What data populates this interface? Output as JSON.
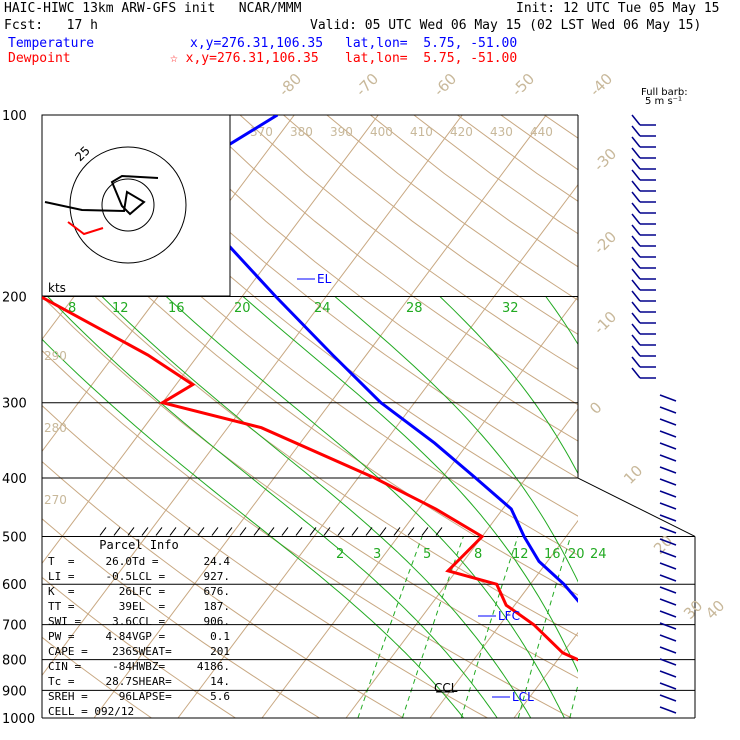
{
  "header": {
    "title": "HAIC-HIWC 13km ARW-GFS init   NCAR/MMM",
    "init": "Init: 12 UTC Tue 05 May 15",
    "fcst": "Fcst:   17 h",
    "valid": "Valid: 05 UTC Wed 06 May 15 (02 LST Wed 06 May 15)",
    "temp_label": "Temperature",
    "dew_label": "Dewpoint",
    "temp_xy": "x,y=276.31,106.35",
    "dew_xy": "☆ x,y=276.31,106.35",
    "temp_latlon": "lat,lon=  5.75, -51.00",
    "dew_latlon": "lat,lon=  5.75, -51.00"
  },
  "colors": {
    "temperature": "#0000ff",
    "dewpoint": "#ff0000",
    "dry_adiabat": "#c8a882",
    "moist_adiabat": "#22aa22",
    "isobar": "#000000",
    "wind_barb": "#00008b",
    "tan_label": "#c8b89a"
  },
  "chart_data": {
    "type": "line",
    "title": "HAIC-HIWC 13km ARW-GFS init",
    "pressure_levels": [
      100,
      200,
      300,
      400,
      500,
      600,
      700,
      800,
      900,
      1000
    ],
    "isotherm_labels": [
      "-80",
      "-70",
      "-60",
      "-50",
      "-40",
      "-30",
      "-20",
      "-10",
      "0",
      "10",
      "20",
      "30",
      "40"
    ],
    "theta_labels": [
      "370",
      "380",
      "390",
      "400",
      "410",
      "420",
      "430",
      "440"
    ],
    "lower_theta_labels": [
      "290",
      "280",
      "270"
    ],
    "mixing_ratio_upper": [
      "8",
      "12",
      "16",
      "20",
      "24",
      "28",
      "32"
    ],
    "mixing_ratio_lower": [
      "2",
      "3",
      "5",
      "8",
      "12",
      "16",
      "20",
      "24"
    ],
    "series": [
      {
        "name": "Temperature",
        "points": [
          [
            100,
            -72
          ],
          [
            120,
            -77
          ],
          [
            150,
            -71
          ],
          [
            200,
            -56
          ],
          [
            250,
            -44
          ],
          [
            300,
            -34
          ],
          [
            350,
            -24
          ],
          [
            400,
            -16
          ],
          [
            450,
            -9
          ],
          [
            500,
            -5
          ],
          [
            550,
            -1
          ],
          [
            600,
            4
          ],
          [
            650,
            8
          ],
          [
            700,
            11
          ],
          [
            750,
            14
          ],
          [
            800,
            17
          ],
          [
            850,
            19
          ],
          [
            900,
            21
          ],
          [
            950,
            24
          ],
          [
            1000,
            26
          ]
        ]
      },
      {
        "name": "Dewpoint",
        "points": [
          [
            100,
            -85
          ],
          [
            120,
            -92
          ],
          [
            150,
            -95
          ],
          [
            200,
            -84
          ],
          [
            250,
            -66
          ],
          [
            280,
            -58
          ],
          [
            300,
            -60
          ],
          [
            330,
            -46
          ],
          [
            400,
            -28
          ],
          [
            450,
            -18
          ],
          [
            500,
            -10
          ],
          [
            570,
            -11
          ],
          [
            600,
            -4
          ],
          [
            650,
            -1
          ],
          [
            700,
            4
          ],
          [
            780,
            10
          ],
          [
            850,
            18
          ],
          [
            900,
            20
          ],
          [
            950,
            23
          ],
          [
            1000,
            24.4
          ]
        ]
      }
    ],
    "annotations": [
      "EL",
      "LFC",
      "LCL",
      "CCL"
    ],
    "hodograph": {
      "ring_label": "25",
      "units": "kts"
    },
    "barb_legend": {
      "line1": "Full barb:",
      "line2": "5 m s⁻¹"
    },
    "parcel_info": {
      "title": "Parcel Info",
      "rows": [
        [
          "T  =",
          "26.0",
          "Td =",
          "24.4"
        ],
        [
          "LI =",
          "-0.5",
          "LCL =",
          "927."
        ],
        [
          "K  =",
          "26",
          "LFC =",
          "676."
        ],
        [
          "TT =",
          "39",
          "EL  =",
          "187."
        ],
        [
          "SWI =",
          "3.6",
          "CCL =",
          "906."
        ],
        [
          "PW =",
          "4.84",
          "VGP =",
          "0.1"
        ],
        [
          "CAPE =",
          "236",
          "SWEAT=",
          "201"
        ],
        [
          "CIN =",
          "-84",
          "HWBZ=",
          "4186."
        ],
        [
          "Tc =",
          "28.7",
          "SHEAR=",
          "14."
        ],
        [
          "SREH =",
          "96",
          "LAPSE=",
          "5.6"
        ]
      ],
      "cell": "CELL = 092/12"
    }
  }
}
